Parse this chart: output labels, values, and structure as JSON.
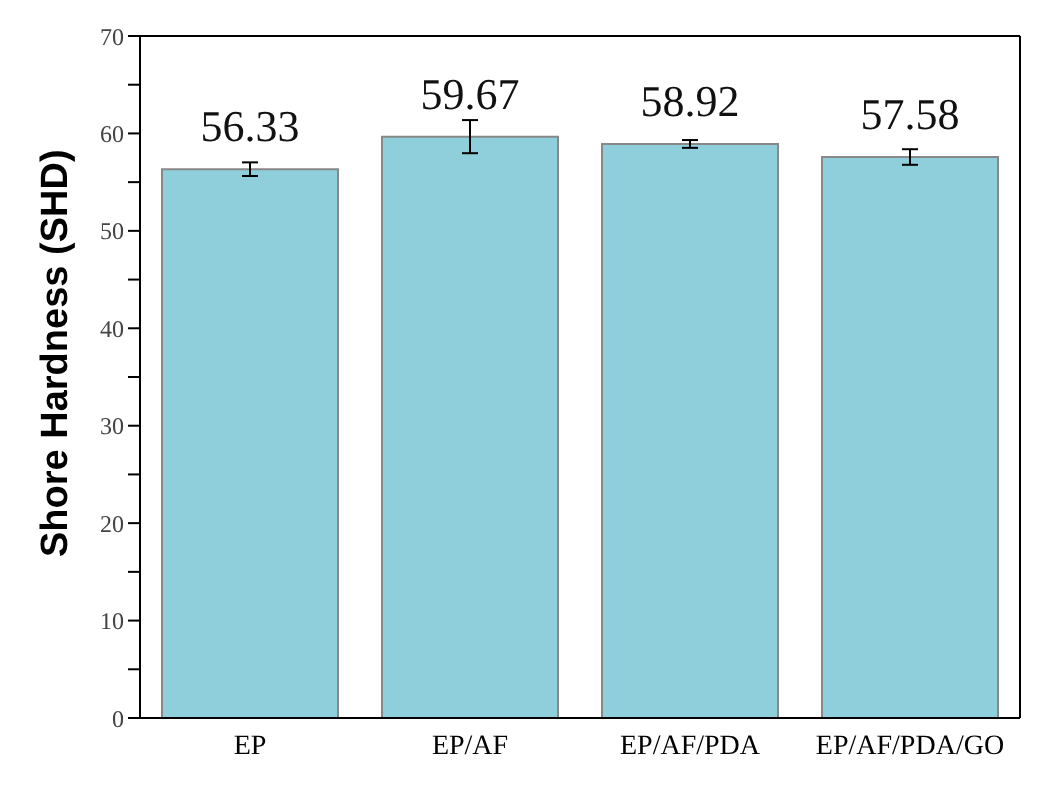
{
  "chart_data": {
    "type": "bar",
    "ylabel": "Shore Hardness (SHD)",
    "categories": [
      "EP",
      "EP/AF",
      "EP/AF/PDA",
      "EP/AF/PDA/GO"
    ],
    "values": [
      56.33,
      59.67,
      58.92,
      57.58
    ],
    "errors": [
      0.7,
      1.7,
      0.4,
      0.8
    ],
    "color": "#8fcfdc",
    "data_labels": true,
    "ylim": [
      0,
      70
    ],
    "yticks": [
      0,
      {
        "value": 5,
        "label": null
      },
      10,
      {
        "value": 15,
        "label": null
      },
      20,
      {
        "value": 25,
        "label": null
      },
      30,
      {
        "value": 35,
        "label": null
      },
      40,
      {
        "value": 45,
        "label": null
      },
      50,
      {
        "value": 55,
        "label": null
      },
      60,
      {
        "value": 65,
        "label": null
      },
      70
    ],
    "grid": false
  }
}
